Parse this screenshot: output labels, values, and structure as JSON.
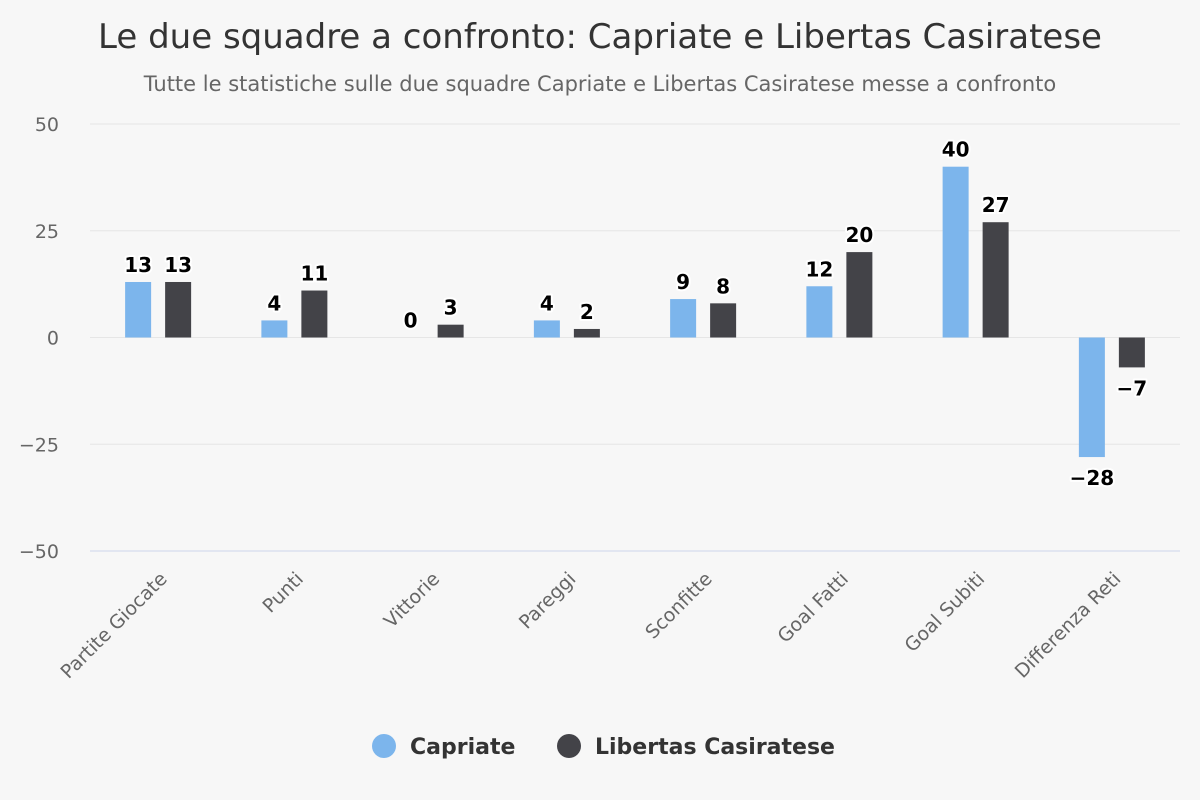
{
  "chart_data": {
    "type": "bar",
    "title": "Le due squadre a confronto: Capriate e Libertas Casiratese",
    "subtitle": "Tutte le statistiche sulle due squadre Capriate e Libertas Casiratese messe a confronto",
    "categories": [
      "Partite Giocate",
      "Punti",
      "Vittorie",
      "Pareggi",
      "Sconfitte",
      "Goal Fatti",
      "Goal Subiti",
      "Differenza Reti"
    ],
    "series": [
      {
        "name": "Capriate",
        "color": "#7cb5ec",
        "values": [
          13,
          4,
          0,
          4,
          9,
          12,
          40,
          -28
        ]
      },
      {
        "name": "Libertas Casiratese",
        "color": "#434348",
        "values": [
          13,
          11,
          3,
          2,
          8,
          20,
          27,
          -7
        ]
      }
    ],
    "ylim": [
      -50,
      50
    ],
    "yticks": [
      50,
      25,
      0,
      -25,
      -50
    ],
    "ytick_labels": [
      "50",
      "25",
      "0",
      "−25",
      "−50"
    ],
    "value_labels": [
      [
        "13",
        "4",
        "0",
        "4",
        "9",
        "12",
        "40",
        "−28"
      ],
      [
        "13",
        "11",
        "3",
        "2",
        "8",
        "20",
        "27",
        "−7"
      ]
    ],
    "xlabel": "",
    "ylabel": "",
    "grid": true,
    "legend": "bottom-center"
  }
}
